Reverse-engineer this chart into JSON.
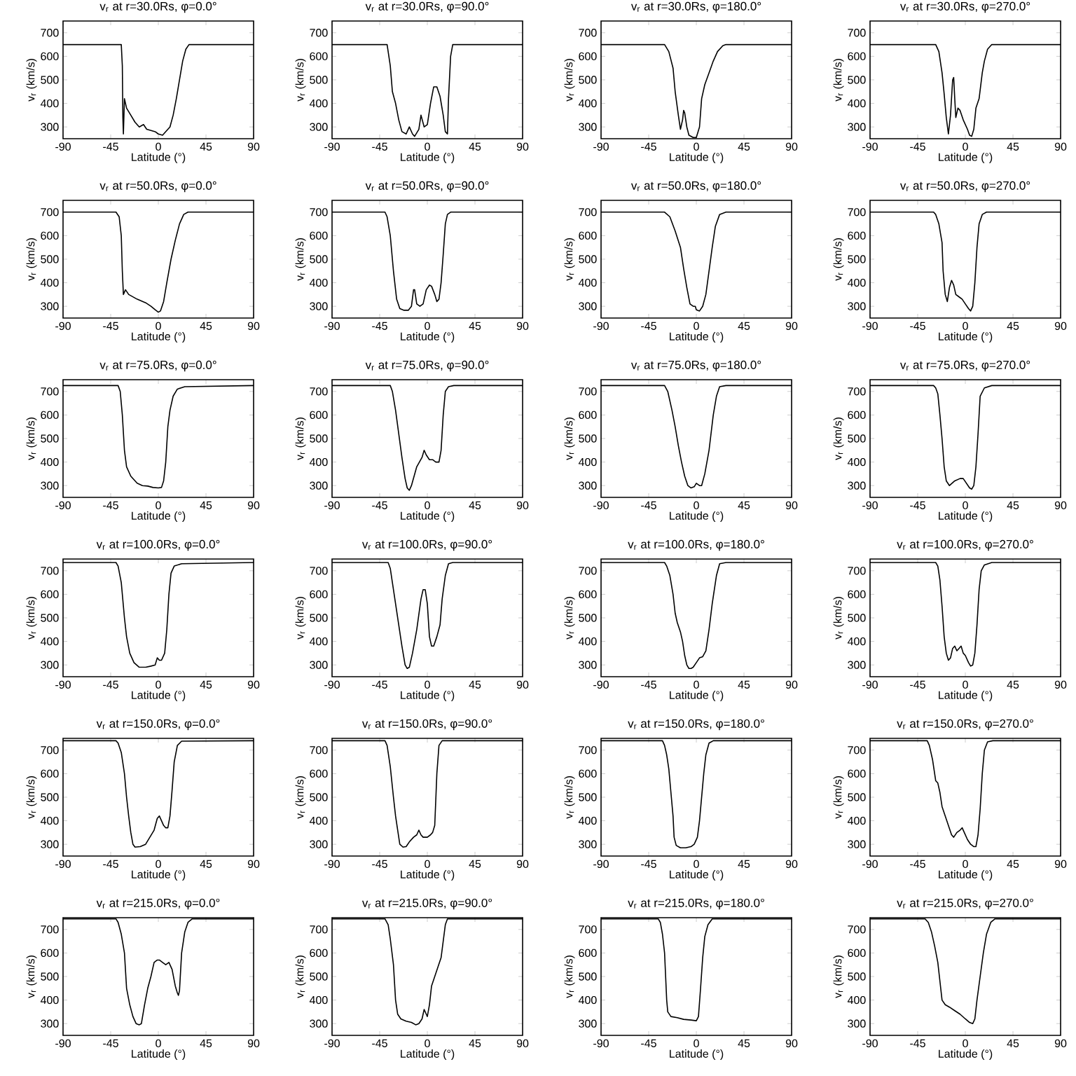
{
  "chart_data": [
    {
      "type": "line",
      "title": "v$_{r}$ at r=30.0Rs, φ=0.0°",
      "xlabel": "Latitude (°)",
      "ylabel": "v$_{r}$ (km/s)",
      "color": "#000000",
      "xlim": [
        -90,
        90
      ],
      "ylim": [
        250,
        750
      ],
      "xticks": [
        -90,
        -45,
        0,
        45,
        90
      ],
      "yticks": [
        300,
        400,
        500,
        600,
        700
      ],
      "x": [
        -90,
        -35,
        -34,
        -33.5,
        -33,
        -32,
        -30,
        -26,
        -22,
        -18,
        -14,
        -11,
        -7,
        -3,
        0,
        4,
        8,
        11,
        14,
        17,
        20,
        23,
        26,
        29,
        90
      ],
      "values": [
        650,
        650,
        560,
        340,
        270,
        420,
        380,
        350,
        320,
        300,
        310,
        290,
        285,
        280,
        270,
        265,
        285,
        300,
        350,
        420,
        500,
        580,
        630,
        650,
        650
      ]
    },
    {
      "type": "line",
      "title": "v$_{r}$ at r=30.0Rs, φ=90.0°",
      "xlabel": "Latitude (°)",
      "ylabel": "v$_{r}$ (km/s)",
      "color": "#000000",
      "xlim": [
        -90,
        90
      ],
      "ylim": [
        250,
        750
      ],
      "xticks": [
        -90,
        -45,
        0,
        45,
        90
      ],
      "yticks": [
        300,
        400,
        500,
        600,
        700
      ],
      "x": [
        -90,
        -38,
        -35,
        -33,
        -30,
        -27,
        -24,
        -20,
        -17,
        -14,
        -12,
        -8,
        -6,
        -3,
        0,
        3,
        6,
        9,
        12,
        15,
        17,
        19,
        20,
        22,
        24,
        90
      ],
      "values": [
        650,
        650,
        560,
        450,
        400,
        330,
        280,
        270,
        300,
        270,
        260,
        290,
        350,
        300,
        310,
        400,
        470,
        470,
        430,
        350,
        280,
        270,
        420,
        600,
        650,
        650
      ]
    },
    {
      "type": "line",
      "title": "v$_{r}$ at r=30.0Rs, φ=180.0°",
      "xlabel": "Latitude (°)",
      "ylabel": "v$_{r}$ (km/s)",
      "color": "#000000",
      "xlim": [
        -90,
        90
      ],
      "ylim": [
        250,
        750
      ],
      "xticks": [
        -90,
        -45,
        0,
        45,
        90
      ],
      "yticks": [
        300,
        400,
        500,
        600,
        700
      ],
      "x": [
        -90,
        -30,
        -26,
        -22,
        -20,
        -17,
        -15,
        -13,
        -12,
        -11,
        -9,
        -7,
        -3,
        0,
        3,
        5,
        8,
        12,
        16,
        20,
        25,
        28,
        90
      ],
      "values": [
        650,
        650,
        620,
        550,
        450,
        350,
        290,
        330,
        370,
        360,
        300,
        265,
        255,
        255,
        300,
        420,
        480,
        530,
        580,
        620,
        645,
        650,
        650
      ]
    },
    {
      "type": "line",
      "title": "v$_{r}$ at r=30.0Rs, φ=270.0°",
      "xlabel": "Latitude (°)",
      "ylabel": "v$_{r}$ (km/s)",
      "color": "#000000",
      "xlim": [
        -90,
        90
      ],
      "ylim": [
        250,
        750
      ],
      "xticks": [
        -90,
        -45,
        0,
        45,
        90
      ],
      "yticks": [
        300,
        400,
        500,
        600,
        700
      ],
      "x": [
        -90,
        -28,
        -25,
        -22,
        -20,
        -18,
        -16,
        -14,
        -12,
        -11,
        -10,
        -9,
        -7,
        -5,
        -2,
        2,
        4,
        6,
        8,
        10,
        13,
        16,
        18,
        21,
        25,
        90
      ],
      "values": [
        650,
        650,
        620,
        530,
        440,
        340,
        270,
        350,
        500,
        510,
        420,
        340,
        380,
        370,
        330,
        290,
        265,
        260,
        290,
        380,
        420,
        530,
        580,
        630,
        650,
        650
      ]
    },
    {
      "type": "line",
      "title": "v$_{r}$ at r=50.0Rs, φ=0.0°",
      "xlabel": "Latitude (°)",
      "ylabel": "v$_{r}$ (km/s)",
      "color": "#000000",
      "xlim": [
        -90,
        90
      ],
      "ylim": [
        250,
        750
      ],
      "xticks": [
        -90,
        -45,
        0,
        45,
        90
      ],
      "yticks": [
        300,
        400,
        500,
        600,
        700
      ],
      "x": [
        -90,
        -40,
        -37,
        -35,
        -34,
        -33,
        -31,
        -28,
        -20,
        -12,
        -7,
        -3,
        0,
        2,
        5,
        8,
        12,
        16,
        20,
        24,
        28,
        90
      ],
      "values": [
        700,
        700,
        680,
        600,
        450,
        350,
        370,
        350,
        330,
        315,
        300,
        285,
        275,
        280,
        320,
        400,
        500,
        580,
        650,
        690,
        700,
        700
      ]
    },
    {
      "type": "line",
      "title": "v$_{r}$ at r=50.0Rs, φ=90.0°",
      "xlabel": "Latitude (°)",
      "ylabel": "v$_{r}$ (km/s)",
      "color": "#000000",
      "xlim": [
        -90,
        90
      ],
      "ylim": [
        250,
        750
      ],
      "xticks": [
        -90,
        -45,
        0,
        45,
        90
      ],
      "yticks": [
        300,
        400,
        500,
        600,
        700
      ],
      "x": [
        -90,
        -40,
        -38,
        -35,
        -32,
        -29,
        -26,
        -22,
        -18,
        -15,
        -13,
        -12,
        -10,
        -7,
        -4,
        -1,
        2,
        4,
        7,
        9,
        11,
        13,
        15,
        17,
        19,
        22,
        90
      ],
      "values": [
        700,
        700,
        680,
        600,
        450,
        330,
        290,
        283,
        283,
        300,
        370,
        370,
        310,
        300,
        310,
        370,
        390,
        385,
        350,
        320,
        330,
        400,
        520,
        650,
        690,
        700,
        700
      ]
    },
    {
      "type": "line",
      "title": "v$_{r}$ at r=50.0Rs, φ=180.0°",
      "xlabel": "Latitude (°)",
      "ylabel": "v$_{r}$ (km/s)",
      "color": "#000000",
      "xlim": [
        -90,
        90
      ],
      "ylim": [
        250,
        750
      ],
      "xticks": [
        -90,
        -45,
        0,
        45,
        90
      ],
      "yticks": [
        300,
        400,
        500,
        600,
        700
      ],
      "x": [
        -90,
        -30,
        -25,
        -20,
        -15,
        -12,
        -9,
        -6,
        -3,
        -1,
        0,
        3,
        6,
        9,
        12,
        15,
        18,
        22,
        28,
        90
      ],
      "values": [
        700,
        700,
        680,
        620,
        550,
        460,
        380,
        310,
        300,
        300,
        285,
        280,
        300,
        350,
        450,
        550,
        640,
        690,
        700,
        700
      ]
    },
    {
      "type": "line",
      "title": "v$_{r}$ at r=50.0Rs, φ=270.0°",
      "xlabel": "Latitude (°)",
      "ylabel": "v$_{r}$ (km/s)",
      "color": "#000000",
      "xlim": [
        -90,
        90
      ],
      "ylim": [
        250,
        750
      ],
      "xticks": [
        -90,
        -45,
        0,
        45,
        90
      ],
      "yticks": [
        300,
        400,
        500,
        600,
        700
      ],
      "x": [
        -90,
        -30,
        -28,
        -25,
        -22,
        -21,
        -19,
        -17,
        -15,
        -13,
        -11,
        -9,
        -6,
        -3,
        0,
        3,
        5,
        7,
        9,
        11,
        13,
        16,
        20,
        90
      ],
      "values": [
        700,
        700,
        690,
        650,
        570,
        450,
        350,
        320,
        380,
        410,
        390,
        350,
        340,
        330,
        310,
        290,
        280,
        300,
        400,
        550,
        650,
        690,
        700,
        700
      ]
    },
    {
      "type": "line",
      "title": "v$_{r}$ at r=75.0Rs, φ=0.0°",
      "xlabel": "Latitude (°)",
      "ylabel": "v$_{r}$ (km/s)",
      "color": "#000000",
      "xlim": [
        -90,
        90
      ],
      "ylim": [
        250,
        750
      ],
      "xticks": [
        -90,
        -45,
        0,
        45,
        90
      ],
      "yticks": [
        300,
        400,
        500,
        600,
        700
      ],
      "x": [
        -90,
        -38,
        -36,
        -34,
        -32,
        -30,
        -26,
        -20,
        -15,
        -10,
        -5,
        0,
        3,
        5,
        7,
        9,
        11,
        14,
        18,
        25,
        90
      ],
      "values": [
        725,
        725,
        700,
        600,
        450,
        380,
        340,
        310,
        300,
        298,
        292,
        290,
        292,
        320,
        400,
        550,
        620,
        680,
        710,
        720,
        725
      ]
    },
    {
      "type": "line",
      "title": "v$_{r}$ at r=75.0Rs, φ=90.0°",
      "xlabel": "Latitude (°)",
      "ylabel": "v$_{r}$ (km/s)",
      "color": "#000000",
      "xlim": [
        -90,
        90
      ],
      "ylim": [
        250,
        750
      ],
      "xticks": [
        -90,
        -45,
        0,
        45,
        90
      ],
      "yticks": [
        300,
        400,
        500,
        600,
        700
      ],
      "x": [
        -90,
        -35,
        -33,
        -30,
        -27,
        -24,
        -21,
        -19,
        -17,
        -15,
        -10,
        -5,
        -3,
        -1,
        2,
        5,
        8,
        11,
        13,
        15,
        17,
        20,
        25,
        90
      ],
      "values": [
        725,
        725,
        700,
        620,
        520,
        420,
        330,
        290,
        280,
        300,
        380,
        420,
        450,
        430,
        410,
        410,
        400,
        400,
        450,
        600,
        700,
        720,
        725,
        725
      ]
    },
    {
      "type": "line",
      "title": "v$_{r}$ at r=75.0Rs, φ=180.0°",
      "xlabel": "Latitude (°)",
      "ylabel": "v$_{r}$ (km/s)",
      "color": "#000000",
      "xlim": [
        -90,
        90
      ],
      "ylim": [
        250,
        750
      ],
      "xticks": [
        -90,
        -45,
        0,
        45,
        90
      ],
      "yticks": [
        300,
        400,
        500,
        600,
        700
      ],
      "x": [
        -90,
        -30,
        -27,
        -23,
        -20,
        -17,
        -14,
        -11,
        -8,
        -5,
        -2,
        0,
        3,
        5,
        8,
        12,
        16,
        19,
        22,
        28,
        90
      ],
      "values": [
        725,
        725,
        700,
        620,
        550,
        470,
        400,
        340,
        300,
        290,
        295,
        310,
        300,
        300,
        350,
        450,
        600,
        680,
        720,
        725,
        725
      ]
    },
    {
      "type": "line",
      "title": "v$_{r}$ at r=75.0Rs, φ=270.0°",
      "xlabel": "Latitude (°)",
      "ylabel": "v$_{r}$ (km/s)",
      "color": "#000000",
      "xlim": [
        -90,
        90
      ],
      "ylim": [
        250,
        750
      ],
      "xticks": [
        -90,
        -45,
        0,
        45,
        90
      ],
      "yticks": [
        300,
        400,
        500,
        600,
        700
      ],
      "x": [
        -90,
        -30,
        -28,
        -26,
        -24,
        -22,
        -20,
        -18,
        -15,
        -10,
        -5,
        -2,
        1,
        4,
        6,
        8,
        10,
        12,
        14,
        18,
        25,
        90
      ],
      "values": [
        725,
        725,
        715,
        690,
        600,
        500,
        380,
        320,
        300,
        320,
        330,
        330,
        310,
        290,
        285,
        300,
        380,
        520,
        680,
        715,
        725,
        725
      ]
    },
    {
      "type": "line",
      "title": "v$_{r}$ at r=100.0Rs, φ=0.0°",
      "xlabel": "Latitude (°)",
      "ylabel": "v$_{r}$ (km/s)",
      "color": "#000000",
      "xlim": [
        -90,
        90
      ],
      "ylim": [
        250,
        750
      ],
      "xticks": [
        -90,
        -45,
        0,
        45,
        90
      ],
      "yticks": [
        300,
        400,
        500,
        600,
        700
      ],
      "x": [
        -90,
        -40,
        -38,
        -35,
        -32,
        -30,
        -27,
        -23,
        -18,
        -12,
        -7,
        -3,
        -1,
        1,
        3,
        6,
        8,
        10,
        12,
        15,
        22,
        90
      ],
      "values": [
        735,
        735,
        720,
        650,
        500,
        420,
        350,
        310,
        290,
        290,
        295,
        300,
        330,
        320,
        320,
        350,
        450,
        600,
        690,
        720,
        730,
        735
      ]
    },
    {
      "type": "line",
      "title": "v$_{r}$ at r=100.0Rs, φ=90.0°",
      "xlabel": "Latitude (°)",
      "ylabel": "v$_{r}$ (km/s)",
      "color": "#000000",
      "xlim": [
        -90,
        90
      ],
      "ylim": [
        250,
        750
      ],
      "xticks": [
        -90,
        -45,
        0,
        45,
        90
      ],
      "yticks": [
        300,
        400,
        500,
        600,
        700
      ],
      "x": [
        -90,
        -37,
        -35,
        -33,
        -30,
        -27,
        -24,
        -21,
        -19,
        -17,
        -14,
        -10,
        -6,
        -4,
        -2,
        0,
        2,
        4,
        6,
        9,
        12,
        14,
        17,
        20,
        24,
        90
      ],
      "values": [
        735,
        735,
        710,
        650,
        560,
        470,
        380,
        300,
        285,
        290,
        350,
        450,
        580,
        620,
        620,
        560,
        420,
        380,
        380,
        420,
        470,
        580,
        680,
        730,
        735,
        735
      ]
    },
    {
      "type": "line",
      "title": "v$_{r}$ at r=100.0Rs, φ=180.0°",
      "xlabel": "Latitude (°)",
      "ylabel": "v$_{r}$ (km/s)",
      "color": "#000000",
      "xlim": [
        -90,
        90
      ],
      "ylim": [
        250,
        750
      ],
      "xticks": [
        -90,
        -45,
        0,
        45,
        90
      ],
      "yticks": [
        300,
        400,
        500,
        600,
        700
      ],
      "x": [
        -90,
        -30,
        -28,
        -25,
        -22,
        -20,
        -18,
        -15,
        -13,
        -11,
        -9,
        -7,
        -5,
        -3,
        0,
        3,
        6,
        9,
        12,
        15,
        19,
        22,
        28,
        90
      ],
      "values": [
        735,
        735,
        720,
        680,
        600,
        520,
        480,
        440,
        400,
        340,
        300,
        285,
        285,
        290,
        310,
        330,
        335,
        360,
        450,
        560,
        680,
        730,
        735,
        735
      ]
    },
    {
      "type": "line",
      "title": "v$_{r}$ at r=100.0Rs, φ=270.0°",
      "xlabel": "Latitude (°)",
      "ylabel": "v$_{r}$ (km/s)",
      "color": "#000000",
      "xlim": [
        -90,
        90
      ],
      "ylim": [
        250,
        750
      ],
      "xticks": [
        -90,
        -45,
        0,
        45,
        90
      ],
      "yticks": [
        300,
        400,
        500,
        600,
        700
      ],
      "x": [
        -90,
        -28,
        -26,
        -24,
        -22,
        -20,
        -18,
        -16,
        -14,
        -12,
        -10,
        -8,
        -6,
        -4,
        -2,
        0,
        3,
        5,
        7,
        9,
        11,
        13,
        15,
        18,
        25,
        90
      ],
      "values": [
        735,
        735,
        720,
        660,
        550,
        420,
        350,
        320,
        330,
        370,
        380,
        360,
        370,
        380,
        350,
        340,
        310,
        295,
        300,
        350,
        470,
        620,
        700,
        725,
        735,
        735
      ]
    },
    {
      "type": "line",
      "title": "v$_{r}$ at r=150.0Rs, φ=0.0°",
      "xlabel": "Latitude (°)",
      "ylabel": "v$_{r}$ (km/s)",
      "color": "#000000",
      "xlim": [
        -90,
        90
      ],
      "ylim": [
        250,
        750
      ],
      "xticks": [
        -90,
        -45,
        0,
        45,
        90
      ],
      "yticks": [
        300,
        400,
        500,
        600,
        700
      ],
      "x": [
        -90,
        -40,
        -38,
        -35,
        -32,
        -30,
        -28,
        -26,
        -24,
        -22,
        -17,
        -12,
        -8,
        -4,
        -1,
        1,
        3,
        5,
        7,
        9,
        11,
        13,
        15,
        18,
        22,
        90
      ],
      "values": [
        740,
        740,
        730,
        690,
        600,
        500,
        420,
        350,
        300,
        288,
        290,
        300,
        330,
        360,
        410,
        420,
        400,
        380,
        370,
        370,
        420,
        530,
        650,
        720,
        738,
        740
      ]
    },
    {
      "type": "line",
      "title": "v$_{r}$ at r=150.0Rs, φ=90.0°",
      "xlabel": "Latitude (°)",
      "ylabel": "v$_{r}$ (km/s)",
      "color": "#000000",
      "xlim": [
        -90,
        90
      ],
      "ylim": [
        250,
        750
      ],
      "xticks": [
        -90,
        -45,
        0,
        45,
        90
      ],
      "yticks": [
        300,
        400,
        500,
        600,
        700
      ],
      "x": [
        -90,
        -40,
        -38,
        -35,
        -32,
        -30,
        -28,
        -26,
        -23,
        -20,
        -17,
        -13,
        -10,
        -8,
        -6,
        -4,
        0,
        3,
        5,
        7,
        9,
        11,
        14,
        90
      ],
      "values": [
        740,
        740,
        720,
        630,
        500,
        420,
        360,
        300,
        288,
        290,
        310,
        330,
        340,
        360,
        340,
        330,
        330,
        340,
        350,
        380,
        600,
        720,
        740,
        740
      ]
    },
    {
      "type": "line",
      "title": "v$_{r}$ at r=150.0Rs, φ=180.0°",
      "xlabel": "Latitude (°)",
      "ylabel": "v$_{r}$ (km/s)",
      "color": "#000000",
      "xlim": [
        -90,
        90
      ],
      "ylim": [
        250,
        750
      ],
      "xticks": [
        -90,
        -45,
        0,
        45,
        90
      ],
      "yticks": [
        300,
        400,
        500,
        600,
        700
      ],
      "x": [
        -90,
        -32,
        -30,
        -28,
        -26,
        -24,
        -22,
        -21,
        -19,
        -15,
        -10,
        -5,
        -2,
        1,
        3,
        5,
        7,
        9,
        12,
        16,
        90
      ],
      "values": [
        740,
        740,
        720,
        680,
        620,
        520,
        420,
        330,
        295,
        285,
        285,
        290,
        300,
        330,
        400,
        500,
        600,
        680,
        730,
        740,
        740
      ]
    },
    {
      "type": "line",
      "title": "v$_{r}$ at r=150.0Rs, φ=270.0°",
      "xlabel": "Latitude (°)",
      "ylabel": "v$_{r}$ (km/s)",
      "color": "#000000",
      "xlim": [
        -90,
        90
      ],
      "ylim": [
        250,
        750
      ],
      "xticks": [
        -90,
        -45,
        0,
        45,
        90
      ],
      "yticks": [
        300,
        400,
        500,
        600,
        700
      ],
      "x": [
        -90,
        -36,
        -34,
        -31,
        -28,
        -26,
        -24,
        -22,
        -19,
        -16,
        -13,
        -11,
        -8,
        -5,
        -3,
        -1,
        2,
        5,
        8,
        10,
        12,
        14,
        16,
        18,
        21,
        26,
        90
      ],
      "values": [
        740,
        740,
        720,
        660,
        570,
        560,
        520,
        460,
        420,
        380,
        340,
        330,
        350,
        360,
        370,
        350,
        320,
        300,
        290,
        290,
        340,
        450,
        600,
        700,
        735,
        740,
        740
      ]
    },
    {
      "type": "line",
      "title": "v$_{r}$ at r=215.0Rs, φ=0.0°",
      "xlabel": "Latitude (°)",
      "ylabel": "v$_{r}$ (km/s)",
      "color": "#000000",
      "xlim": [
        -90,
        90
      ],
      "ylim": [
        250,
        750
      ],
      "xticks": [
        -90,
        -45,
        0,
        45,
        90
      ],
      "yticks": [
        300,
        400,
        500,
        600,
        700
      ],
      "x": [
        -90,
        -40,
        -38,
        -35,
        -32,
        -30,
        -27,
        -24,
        -21,
        -18,
        -16,
        -13,
        -10,
        -7,
        -4,
        -1,
        1,
        4,
        7,
        10,
        13,
        16,
        18,
        19,
        20,
        22,
        25,
        28,
        32,
        90
      ],
      "values": [
        745,
        745,
        730,
        680,
        600,
        450,
        380,
        330,
        300,
        295,
        300,
        380,
        450,
        500,
        560,
        570,
        570,
        560,
        550,
        560,
        530,
        460,
        430,
        420,
        440,
        600,
        690,
        730,
        745,
        745
      ]
    },
    {
      "type": "line",
      "title": "v$_{r}$ at r=215.0Rs, φ=90.0°",
      "xlabel": "Latitude (°)",
      "ylabel": "v$_{r}$ (km/s)",
      "color": "#000000",
      "xlim": [
        -90,
        90
      ],
      "ylim": [
        250,
        750
      ],
      "xticks": [
        -90,
        -45,
        0,
        45,
        90
      ],
      "yticks": [
        300,
        400,
        500,
        600,
        700
      ],
      "x": [
        -90,
        -40,
        -37,
        -35,
        -32,
        -30,
        -28,
        -25,
        -20,
        -15,
        -11,
        -8,
        -5,
        -3,
        -1,
        0,
        2,
        4,
        7,
        10,
        13,
        15,
        17,
        19,
        90
      ],
      "values": [
        745,
        745,
        720,
        660,
        550,
        400,
        340,
        320,
        310,
        305,
        295,
        300,
        320,
        360,
        340,
        330,
        380,
        460,
        500,
        540,
        580,
        650,
        720,
        745,
        745
      ]
    },
    {
      "type": "line",
      "title": "v$_{r}$ at r=215.0Rs, φ=180.0°",
      "xlabel": "Latitude (°)",
      "ylabel": "v$_{r}$ (km/s)",
      "color": "#000000",
      "xlim": [
        -90,
        90
      ],
      "ylim": [
        250,
        750
      ],
      "xticks": [
        -90,
        -45,
        0,
        45,
        90
      ],
      "yticks": [
        300,
        400,
        500,
        600,
        700
      ],
      "x": [
        -90,
        -36,
        -34,
        -32,
        -30,
        -29,
        -28,
        -27,
        -24,
        -18,
        -12,
        -5,
        0,
        2,
        4,
        6,
        8,
        11,
        15,
        90
      ],
      "values": [
        745,
        745,
        730,
        680,
        600,
        500,
        400,
        350,
        330,
        325,
        318,
        315,
        312,
        330,
        450,
        580,
        670,
        720,
        745,
        745
      ]
    },
    {
      "type": "line",
      "title": "v$_{r}$ at r=215.0Rs, φ=270.0°",
      "xlabel": "Latitude (°)",
      "ylabel": "v$_{r}$ (km/s)",
      "color": "#000000",
      "xlim": [
        -90,
        90
      ],
      "ylim": [
        250,
        750
      ],
      "xticks": [
        -90,
        -45,
        0,
        45,
        90
      ],
      "yticks": [
        300,
        400,
        500,
        600,
        700
      ],
      "x": [
        -90,
        -38,
        -35,
        -32,
        -29,
        -26,
        -24,
        -22,
        -19,
        -15,
        -10,
        -5,
        0,
        4,
        7,
        9,
        11,
        14,
        17,
        20,
        24,
        28,
        90
      ],
      "values": [
        745,
        745,
        730,
        690,
        630,
        560,
        480,
        400,
        380,
        370,
        355,
        340,
        320,
        305,
        300,
        320,
        400,
        500,
        600,
        680,
        730,
        745,
        745
      ]
    }
  ]
}
